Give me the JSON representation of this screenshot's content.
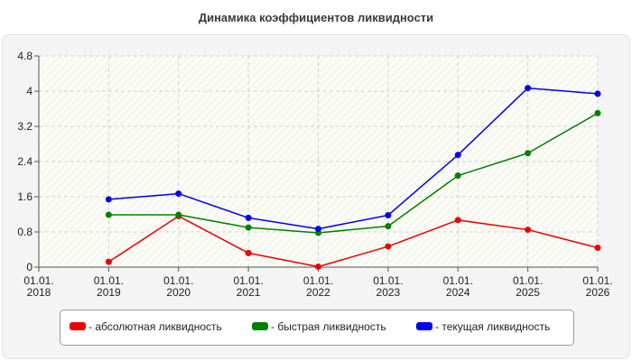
{
  "chart_data": {
    "type": "line",
    "title": "Динамика коэффициентов ликвидности",
    "xlabel": "",
    "ylabel": "",
    "ylim": [
      0,
      4.8
    ],
    "yticks": [
      "0",
      "0.8",
      "1.6",
      "2.4",
      "3.2",
      "4",
      "4.8"
    ],
    "categories": [
      [
        "01.01.",
        "2018"
      ],
      [
        "01.01.",
        "2019"
      ],
      [
        "01.01.",
        "2020"
      ],
      [
        "01.01.",
        "2021"
      ],
      [
        "01.01.",
        "2022"
      ],
      [
        "01.01.",
        "2023"
      ],
      [
        "01.01.",
        "2024"
      ],
      [
        "01.01.",
        "2025"
      ],
      [
        "01.01.",
        "2026"
      ]
    ],
    "grid": true,
    "legend_position": "bottom",
    "series": [
      {
        "name": "- абсолютная ликвидность",
        "color": "#ee0000",
        "values": [
          null,
          0.12,
          1.16,
          0.32,
          0.01,
          0.47,
          1.07,
          0.85,
          0.44
        ]
      },
      {
        "name": "- быстрая ликвидность",
        "color": "#008000",
        "values": [
          null,
          1.19,
          1.19,
          0.9,
          0.78,
          0.93,
          2.08,
          2.59,
          3.5
        ]
      },
      {
        "name": "- текущая ликвидность",
        "color": "#0000ee",
        "values": [
          null,
          1.54,
          1.67,
          1.12,
          0.87,
          1.18,
          2.55,
          4.07,
          3.94
        ]
      }
    ]
  }
}
